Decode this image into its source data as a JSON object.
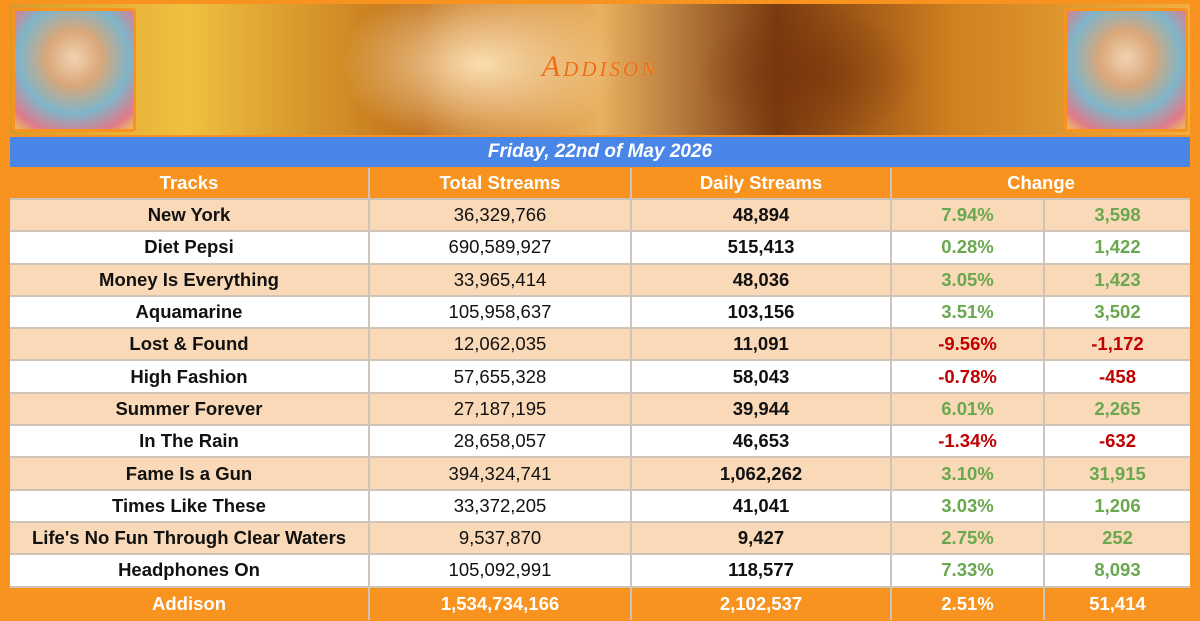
{
  "banner": {
    "logo": "Addison"
  },
  "date": "Friday, 22nd of May 2026",
  "table": {
    "header": [
      "Tracks",
      "Total Streams",
      "Daily Streams",
      "Change"
    ],
    "rows": [
      [
        "New York",
        "36,329,766",
        "48,894",
        "7.94%",
        "3,598"
      ],
      [
        "Diet Pepsi",
        "690,589,927",
        "515,413",
        "0.28%",
        "1,422"
      ],
      [
        "Money Is Everything",
        "33,965,414",
        "48,036",
        "3.05%",
        "1,423"
      ],
      [
        "Aquamarine",
        "105,958,637",
        "103,156",
        "3.51%",
        "3,502"
      ],
      [
        "Lost & Found",
        "12,062,035",
        "11,091",
        "-9.56%",
        "-1,172"
      ],
      [
        "High Fashion",
        "57,655,328",
        "58,043",
        "-0.78%",
        "-458"
      ],
      [
        "Summer Forever",
        "27,187,195",
        "39,944",
        "6.01%",
        "2,265"
      ],
      [
        "In The Rain",
        "28,658,057",
        "46,653",
        "-1.34%",
        "-632"
      ],
      [
        "Fame Is a Gun",
        "394,324,741",
        "1,062,262",
        "3.10%",
        "31,915"
      ],
      [
        "Times Like These",
        "33,372,205",
        "41,041",
        "3.03%",
        "1,206"
      ],
      [
        "Life's No Fun Through Clear Waters",
        "9,537,870",
        "9,427",
        "2.75%",
        "252"
      ],
      [
        "Headphones On",
        "105,092,991",
        "118,577",
        "7.33%",
        "8,093"
      ]
    ],
    "footer": [
      "Addison",
      "1,534,734,166",
      "2,102,537",
      "2.51%",
      "51,414"
    ]
  }
}
